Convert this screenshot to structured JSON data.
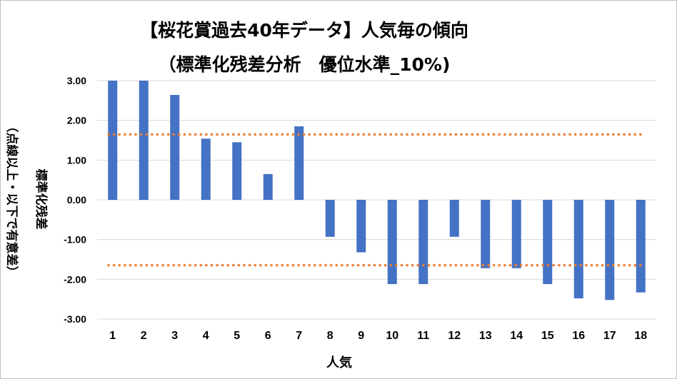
{
  "chart_data": {
    "type": "bar",
    "title": "【桜花賞過去40年データ】人気毎の傾向",
    "subtitle": "（標準化残差分析　優位水準_10%)",
    "xlabel": "人気",
    "ylabel_main": "標準化残差",
    "ylabel_sub": "（点線以上・以下で有意差）",
    "categories": [
      "1",
      "2",
      "3",
      "4",
      "5",
      "6",
      "7",
      "8",
      "9",
      "10",
      "11",
      "12",
      "13",
      "14",
      "15",
      "16",
      "17",
      "18"
    ],
    "values": [
      3.0,
      3.0,
      2.64,
      1.54,
      1.45,
      0.65,
      1.85,
      -0.93,
      -1.32,
      -2.12,
      -2.12,
      -0.93,
      -1.72,
      -1.72,
      -2.12,
      -2.48,
      -2.52,
      -2.33
    ],
    "ylim": [
      -3.0,
      3.0
    ],
    "yticks": [
      "3.00",
      "2.00",
      "1.00",
      "0.00",
      "-1.00",
      "-2.00",
      "-3.00"
    ],
    "thresholds": [
      1.645,
      -1.645
    ],
    "grid": true,
    "legend": "none",
    "colors": {
      "bar": "#4472C4",
      "threshold": "#ED7D31",
      "grid": "#d9d9d9"
    }
  }
}
